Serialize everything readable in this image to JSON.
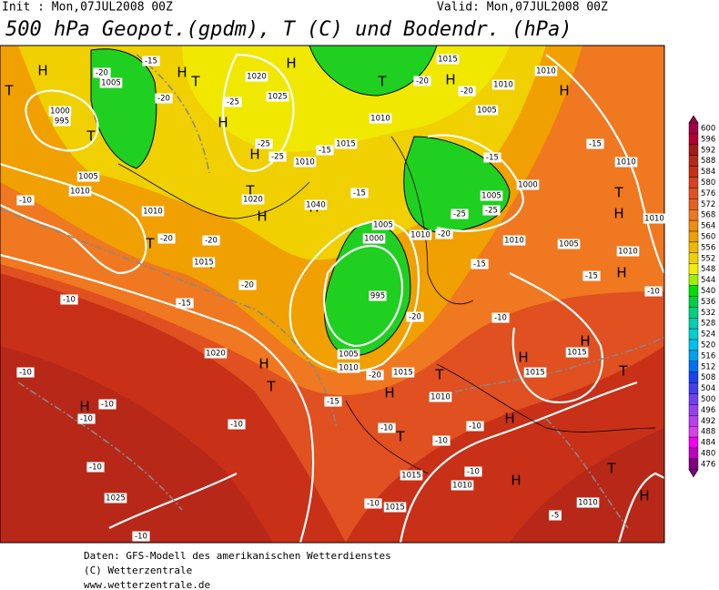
{
  "header": {
    "init": "Init : Mon,07JUL2008 00Z",
    "valid": "Valid: Mon,07JUL2008 00Z",
    "title": "500 hPa Geopot.(gpdm), T (C) und Bodendr. (hPa)"
  },
  "legend": {
    "levels": [
      600,
      596,
      592,
      588,
      584,
      580,
      576,
      572,
      568,
      564,
      560,
      556,
      552,
      548,
      544,
      540,
      536,
      532,
      528,
      524,
      520,
      516,
      512,
      508,
      504,
      500,
      496,
      492,
      488,
      484,
      480,
      476
    ],
    "colors": [
      "#a0004a",
      "#b00030",
      "#a81818",
      "#b82818",
      "#c83018",
      "#d84020",
      "#e05020",
      "#e86020",
      "#f07820",
      "#f08c10",
      "#f0a000",
      "#f0b800",
      "#f0d000",
      "#f0f000",
      "#a0f000",
      "#00e000",
      "#00d040",
      "#00d080",
      "#00d0b0",
      "#00d0d0",
      "#00c0f0",
      "#00a0f0",
      "#0070f0",
      "#2040f0",
      "#4040f0",
      "#7040f0",
      "#9840f0",
      "#b840f0",
      "#d840e8",
      "#f000f0",
      "#c000c0",
      "#800080"
    ]
  },
  "map_labels": [
    "H",
    "T",
    "H",
    "T",
    "H",
    "T",
    "H",
    "H",
    "H",
    "T",
    "H",
    "T",
    "H",
    "T",
    "T",
    "H",
    "T",
    "H",
    "H",
    "H",
    "T",
    "T",
    "H",
    "H",
    "T",
    "H",
    "T",
    "H",
    "H",
    "H",
    "H",
    "T",
    "1005",
    "-20",
    "-15",
    "1000",
    "995",
    "-20",
    "1020",
    "-25",
    "1025",
    "1010",
    "-25",
    "-25",
    "1015",
    "-15",
    "1010",
    "-20",
    "1015",
    "1010",
    "1005",
    "-20",
    "1010",
    "-15",
    "1010",
    "1005",
    "1010",
    "1010",
    "-20",
    "-20",
    "1020",
    "1040",
    "-15",
    "1005",
    "1000",
    "-25",
    "-25",
    "-15",
    "1005",
    "1000",
    "1010",
    "-20",
    "1010",
    "1005",
    "1010",
    "-15",
    "-15",
    "1010",
    "-10",
    "-10",
    "1015",
    "-20",
    "-15",
    "-10",
    "-20",
    "995",
    "-10",
    "1020",
    "1005",
    "1010",
    "-20",
    "1015",
    "-15",
    "1010",
    "1015",
    "1015",
    "-10",
    "-10",
    "-10",
    "-10",
    "-10",
    "-10",
    "-10",
    "1015",
    "1010",
    "-10",
    "-10",
    "1015",
    "-10",
    "1025",
    "-10",
    "1010",
    "-5"
  ],
  "footer": {
    "lines": [
      "Daten: GFS-Modell des amerikanischen Wetterdienstes",
      "(C) Wetterzentrale",
      "www.wetterzentrale.de"
    ]
  }
}
